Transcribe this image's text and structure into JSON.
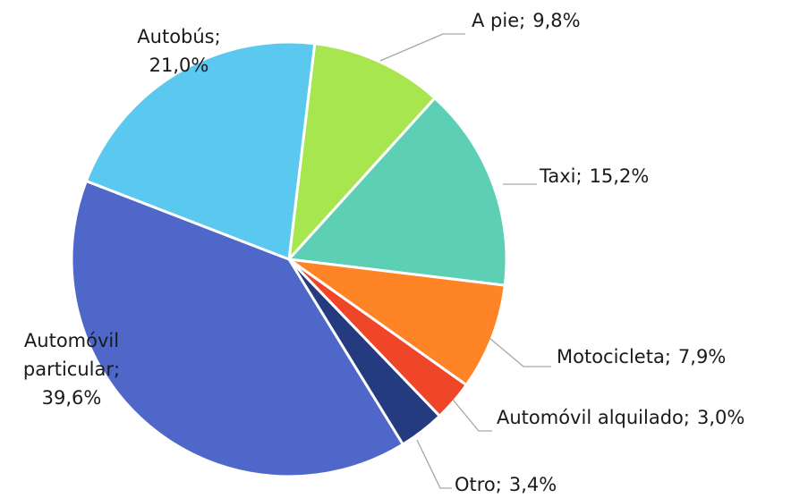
{
  "chart_data": {
    "type": "pie",
    "categories": [
      "A pie",
      "Taxi",
      "Motocicleta",
      "Automóvil alquilado",
      "Otro",
      "Automóvil particular",
      "Autobús"
    ],
    "values": [
      9.8,
      15.2,
      7.9,
      3.0,
      3.4,
      39.6,
      21.0
    ],
    "value_labels": [
      "9,8%",
      "15,2%",
      "7,9%",
      "3,0%",
      "3,4%",
      "39,6%",
      "21,0%"
    ],
    "label_separator": ";",
    "colors": [
      "#a8e64f",
      "#5dcfb4",
      "#fe8426",
      "#ef4528",
      "#253b80",
      "#4f67c8",
      "#5bc8f0"
    ]
  }
}
